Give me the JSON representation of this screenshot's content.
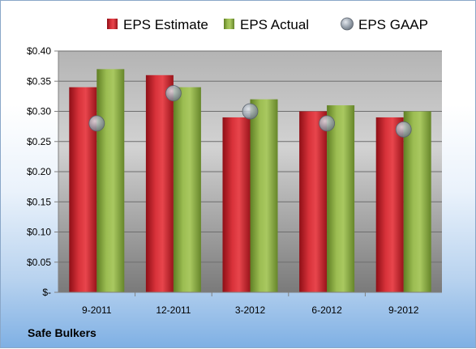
{
  "chart_data": {
    "type": "bar",
    "categories": [
      "9-2011",
      "12-2011",
      "3-2012",
      "6-2012",
      "9-2012"
    ],
    "series": [
      {
        "name": "EPS Estimate",
        "kind": "bar",
        "color": "#c8202a",
        "values": [
          0.34,
          0.36,
          0.29,
          0.3,
          0.29
        ]
      },
      {
        "name": "EPS Actual",
        "kind": "bar",
        "color": "#8cad44",
        "values": [
          0.37,
          0.34,
          0.32,
          0.31,
          0.3
        ]
      },
      {
        "name": "EPS GAAP",
        "kind": "scatter",
        "color": "#9aa4b0",
        "values": [
          0.28,
          0.33,
          0.3,
          0.28,
          0.27
        ]
      }
    ],
    "y_ticks": [
      "$-",
      "$0.05",
      "$0.10",
      "$0.15",
      "$0.20",
      "$0.25",
      "$0.30",
      "$0.35",
      "$0.40"
    ],
    "ylim": [
      0,
      0.4
    ],
    "grid": true,
    "legend_position": "top"
  },
  "footer": {
    "company": "Safe Bulkers"
  }
}
